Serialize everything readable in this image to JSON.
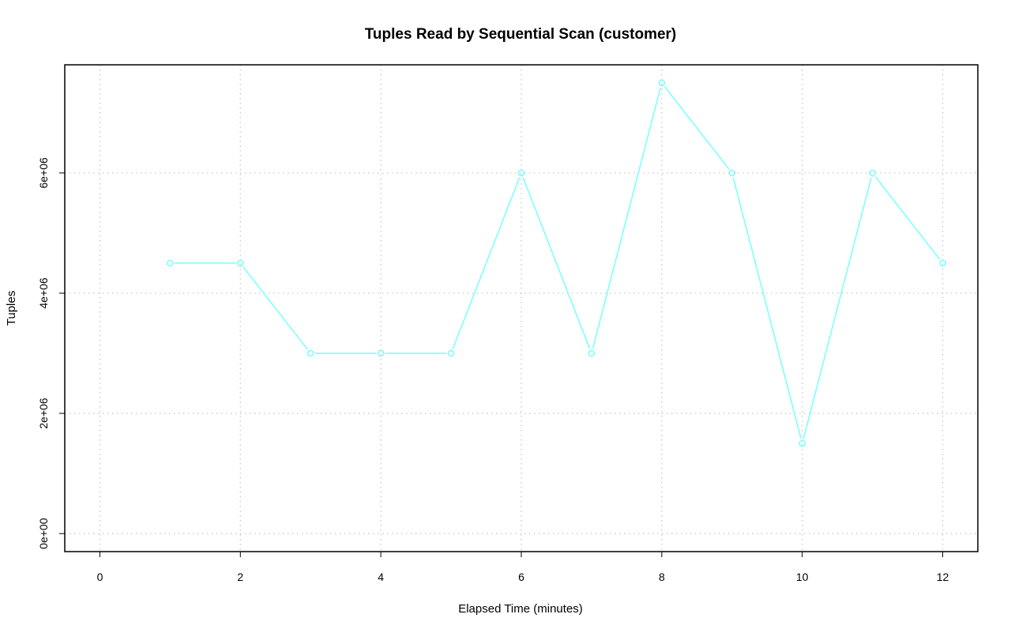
{
  "chart_data": {
    "type": "line",
    "title": "Tuples Read by Sequential Scan (customer)",
    "xlabel": "Elapsed Time (minutes)",
    "ylabel": "Tuples",
    "xlim": [
      -0.5,
      12.5
    ],
    "ylim": [
      -300000,
      7800000
    ],
    "xticks": [
      0,
      2,
      4,
      6,
      8,
      10,
      12
    ],
    "xtick_labels": [
      "0",
      "2",
      "4",
      "6",
      "8",
      "10",
      "12"
    ],
    "yticks": [
      0,
      2000000,
      4000000,
      6000000
    ],
    "ytick_labels": [
      "0e+00",
      "2e+06",
      "4e+06",
      "6e+06"
    ],
    "grid": true,
    "series": [
      {
        "color": "#7fffff",
        "marker": "open-circle",
        "x": [
          1,
          2,
          3,
          4,
          5,
          6,
          7,
          8,
          9,
          10,
          11,
          12
        ],
        "y": [
          4500000,
          4500000,
          3000000,
          3000000,
          3000000,
          6000000,
          3000000,
          7500000,
          6000000,
          1500000,
          6000000,
          4500000
        ]
      }
    ]
  }
}
